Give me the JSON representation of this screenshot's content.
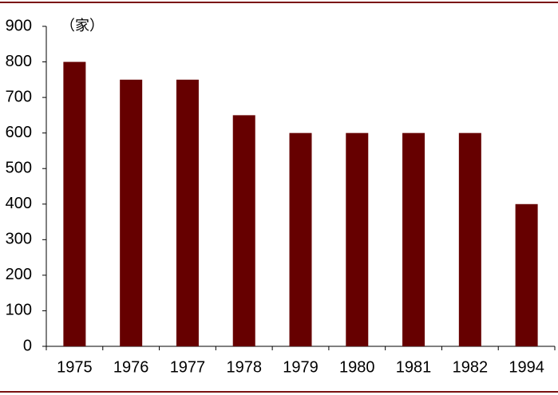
{
  "chart_data": {
    "type": "bar",
    "y_label": "（家）",
    "categories": [
      "1975",
      "1976",
      "1977",
      "1978",
      "1979",
      "1980",
      "1981",
      "1982",
      "1994"
    ],
    "values": [
      800,
      750,
      750,
      650,
      600,
      600,
      600,
      600,
      400
    ],
    "color": "#660000",
    "ylim": [
      0,
      900
    ],
    "yticks": [
      0,
      100,
      200,
      300,
      400,
      500,
      600,
      700,
      800,
      900
    ],
    "grid": false
  }
}
